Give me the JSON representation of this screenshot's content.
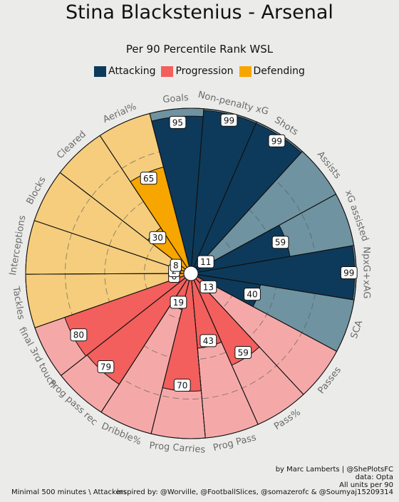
{
  "title": "Stina Blackstenius - Arsenal",
  "subtitle": "Per 90 Percentile Rank WSL",
  "legend": [
    {
      "label": "Attacking",
      "color": "#0d3a5a"
    },
    {
      "label": "Progression",
      "color": "#f25f5c"
    },
    {
      "label": "Defending",
      "color": "#f7a600"
    }
  ],
  "footer": {
    "credit": "by Marc Lamberts | @ShePlotsFC",
    "data": "data: Opta",
    "units": "All units per 90",
    "note": "Minimal 500 minutes \\ Attackers",
    "inspired": "inspired by: @Worville, @FootballSlices, @somazerofc & @Soumyaj15209314"
  },
  "chart_data": {
    "type": "radial_bar",
    "range": [
      0,
      100
    ],
    "series": [
      {
        "name": "Attacking",
        "color": "#0d3a5a",
        "background": "#6f93a1"
      },
      {
        "name": "Progression",
        "color": "#f25f5c",
        "background": "#f4a9a8"
      },
      {
        "name": "Defending",
        "color": "#f7a600",
        "background": "#f5cd7d"
      }
    ],
    "categories": [
      "Goals",
      "Non-penalty xG",
      "Shots",
      "Assists",
      "xG assisted",
      "NpxG+xAG",
      "SCA",
      "Passes",
      "Pass%",
      "Prog Pass",
      "Prog Carries",
      "Dribble%",
      "Prog pass rec",
      "final 3rd touch",
      "Tackles",
      "Interceptions",
      "Blocks",
      "Cleared",
      "Aerial%"
    ],
    "groups": [
      "Attacking",
      "Attacking",
      "Attacking",
      "Attacking",
      "Attacking",
      "Attacking",
      "Attacking",
      "Progression",
      "Progression",
      "Progression",
      "Progression",
      "Progression",
      "Progression",
      "Progression",
      "Defending",
      "Defending",
      "Defending",
      "Defending",
      "Defending"
    ],
    "values": [
      95,
      99,
      99,
      11,
      59,
      99,
      40,
      13,
      59,
      43,
      70,
      19,
      79,
      80,
      6,
      2,
      8,
      30,
      65
    ]
  }
}
